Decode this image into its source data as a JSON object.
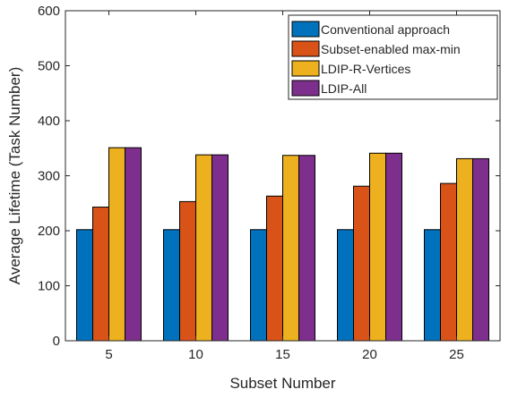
{
  "chart_data": {
    "type": "bar",
    "categories": [
      "5",
      "10",
      "15",
      "20",
      "25"
    ],
    "series": [
      {
        "name": "Conventional approach",
        "color": "#0072BD",
        "values": [
          202,
          202,
          202,
          202,
          202
        ]
      },
      {
        "name": "Subset-enabled max-min",
        "color": "#D95319",
        "values": [
          243,
          253,
          263,
          281,
          286
        ]
      },
      {
        "name": "LDIP-R-Vertices",
        "color": "#EDB120",
        "values": [
          351,
          338,
          337,
          341,
          331
        ]
      },
      {
        "name": "LDIP-All",
        "color": "#7E2F8E",
        "values": [
          351,
          338,
          337,
          341,
          331
        ]
      }
    ],
    "xlabel": "Subset Number",
    "ylabel": "Average Lifetime (Task Number)",
    "ylim": [
      0,
      600
    ],
    "yticks": [
      "0",
      "100",
      "200",
      "300",
      "400",
      "500",
      "600"
    ],
    "grid": false,
    "legend_position": "top-right"
  }
}
